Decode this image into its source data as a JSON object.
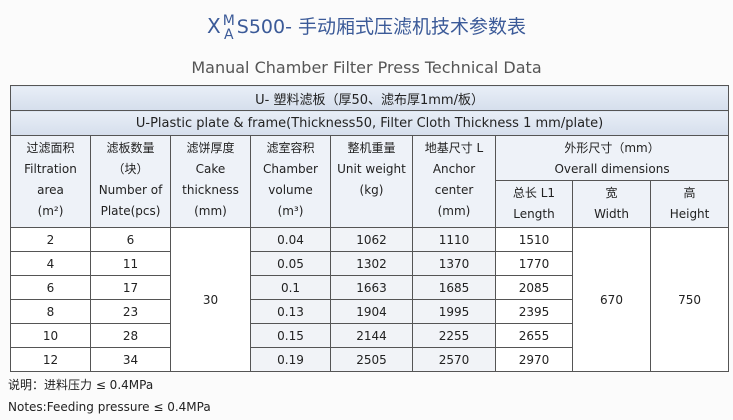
{
  "title": {
    "prefix": "X",
    "sup": "M",
    "sub": "A",
    "main": "S500- 手动厢式压滤机技术参数表"
  },
  "subtitle": "Manual Chamber Filter Press Technical Data",
  "table": {
    "caption_cn": "U- 塑料滤板（厚50、滤布厚1mm/板）",
    "caption_en": "U-Plastic plate & frame(Thickness50, Filter Cloth Thickness 1 mm/plate)",
    "columns": [
      [
        "过滤面积",
        "Filtration area",
        "(m²)"
      ],
      [
        "滤板数量",
        "（块）",
        "Number of",
        "Plate(pcs)"
      ],
      [
        "滤饼厚度",
        "Cake",
        "thickness",
        "(mm)"
      ],
      [
        "滤室容积",
        "Chamber",
        "volume",
        "(m³)"
      ],
      [
        "整机重量",
        "Unit weight",
        "(kg)"
      ],
      [
        "地基尺寸 L",
        "Anchor",
        "center",
        "(mm)"
      ]
    ],
    "dimensions_group": [
      "外形尺寸（mm）",
      "Overall dimensions"
    ],
    "dimension_columns": [
      [
        "总长 L1",
        "Length"
      ],
      [
        "宽",
        "Width"
      ],
      [
        "高",
        "Height"
      ]
    ],
    "rows": [
      [
        2,
        6,
        0.04,
        1062,
        1110,
        1510
      ],
      [
        4,
        11,
        0.05,
        1302,
        1370,
        1770
      ],
      [
        6,
        17,
        0.1,
        1663,
        1685,
        2085
      ],
      [
        8,
        23,
        0.13,
        1904,
        1995,
        2395
      ],
      [
        10,
        28,
        0.15,
        2144,
        2255,
        2655
      ],
      [
        12,
        34,
        0.19,
        2505,
        2570,
        2970
      ]
    ],
    "cake_thickness": 30,
    "width": 670,
    "height": 750
  },
  "notes": [
    "说明：进料压力 ≤ 0.4MPa",
    "Notes:Feeding pressure ≤ 0.4MPa"
  ]
}
